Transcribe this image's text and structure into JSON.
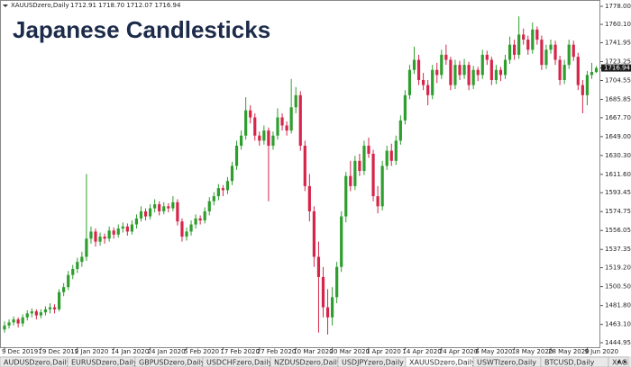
{
  "chart_data": {
    "type": "candlestick",
    "title": "Japanese Candlesticks",
    "symbol": "XAUUSDzero,Daily",
    "quote": "1712.91 1718.70 1712.07 1716.94",
    "last_price": 1716.94,
    "bull_color": "#2e9e2e",
    "bear_color": "#d6254a",
    "ylim": [
      1444.95,
      1778
    ],
    "yticks": [
      {
        "value": 1778,
        "label": "1778.00"
      },
      {
        "value": 1760.1,
        "label": "1760.10"
      },
      1741.95,
      1723.25,
      1704.55,
      1685.85,
      {
        "value": 1667.7,
        "label": "1667.70"
      },
      {
        "value": 1649,
        "label": "1649.00"
      },
      {
        "value": 1630.3,
        "label": "1630.30"
      },
      {
        "value": 1611.6,
        "label": "1611.60"
      },
      1593.45,
      1574.75,
      1556.05,
      1537.35,
      {
        "value": 1519.2,
        "label": "1519.20"
      },
      {
        "value": 1500.5,
        "label": "1500.50"
      },
      {
        "value": 1481.8,
        "label": "1481.80"
      },
      {
        "value": 1463.1,
        "label": "1463.10"
      },
      1444.95
    ],
    "categories": [
      "9 Dec 2019",
      null,
      null,
      null,
      null,
      null,
      null,
      null,
      "19 Dec 2019",
      null,
      null,
      null,
      null,
      null,
      null,
      null,
      "2 Jan 2020",
      null,
      null,
      null,
      null,
      null,
      null,
      null,
      "14 Jan 2020",
      null,
      null,
      null,
      null,
      null,
      null,
      null,
      "24 Jan 2020",
      null,
      null,
      null,
      null,
      null,
      null,
      null,
      "5 Feb 2020",
      null,
      null,
      null,
      null,
      null,
      null,
      null,
      "17 Feb 2020",
      null,
      null,
      null,
      null,
      null,
      null,
      null,
      "27 Feb 2020",
      null,
      null,
      null,
      null,
      null,
      null,
      null,
      "10 Mar 2020",
      null,
      null,
      null,
      null,
      null,
      null,
      null,
      "20 Mar 2020",
      null,
      null,
      null,
      null,
      null,
      null,
      null,
      "1 Apr 2020",
      null,
      null,
      null,
      null,
      null,
      null,
      null,
      "14 Apr 2020",
      null,
      null,
      null,
      null,
      null,
      null,
      null,
      "24 Apr 2020",
      null,
      null,
      null,
      null,
      null,
      null,
      null,
      "6 May 2020",
      null,
      null,
      null,
      null,
      null,
      null,
      null,
      "18 May 2020",
      null,
      null,
      null,
      null,
      null,
      null,
      null,
      "28 May 2020",
      null,
      null,
      null,
      null,
      null,
      null,
      null,
      "9 Jun 2020",
      null,
      null
    ],
    "ohlc": [
      [
        1458,
        1466,
        1455,
        1462
      ],
      [
        1462,
        1468,
        1459,
        1465
      ],
      [
        1465,
        1471,
        1462,
        1468
      ],
      [
        1468,
        1470,
        1460,
        1464
      ],
      [
        1464,
        1473,
        1461,
        1470
      ],
      [
        1470,
        1477,
        1467,
        1474
      ],
      [
        1474,
        1479,
        1470,
        1476
      ],
      [
        1476,
        1478,
        1468,
        1472
      ],
      [
        1472,
        1478,
        1469,
        1475
      ],
      [
        1475,
        1481,
        1472,
        1478
      ],
      [
        1478,
        1484,
        1474,
        1480
      ],
      [
        1480,
        1483,
        1474,
        1478
      ],
      [
        1478,
        1498,
        1476,
        1495
      ],
      [
        1495,
        1504,
        1491,
        1500
      ],
      [
        1500,
        1516,
        1497,
        1512
      ],
      [
        1512,
        1522,
        1508,
        1518
      ],
      [
        1518,
        1529,
        1514,
        1525
      ],
      [
        1525,
        1535,
        1520,
        1530
      ],
      [
        1530,
        1612,
        1526,
        1548
      ],
      [
        1548,
        1560,
        1543,
        1555
      ],
      [
        1555,
        1558,
        1540,
        1545
      ],
      [
        1545,
        1554,
        1541,
        1550
      ],
      [
        1550,
        1553,
        1543,
        1548
      ],
      [
        1548,
        1560,
        1545,
        1556
      ],
      [
        1556,
        1559,
        1548,
        1552
      ],
      [
        1552,
        1562,
        1549,
        1558
      ],
      [
        1558,
        1564,
        1554,
        1560
      ],
      [
        1560,
        1563,
        1551,
        1555
      ],
      [
        1555,
        1566,
        1552,
        1562
      ],
      [
        1562,
        1572,
        1558,
        1568
      ],
      [
        1568,
        1580,
        1565,
        1575
      ],
      [
        1575,
        1578,
        1566,
        1570
      ],
      [
        1570,
        1582,
        1567,
        1578
      ],
      [
        1578,
        1587,
        1574,
        1582
      ],
      [
        1582,
        1585,
        1571,
        1575
      ],
      [
        1575,
        1584,
        1572,
        1580
      ],
      [
        1580,
        1583,
        1574,
        1578
      ],
      [
        1578,
        1590,
        1575,
        1584
      ],
      [
        1584,
        1587,
        1561,
        1565
      ],
      [
        1565,
        1568,
        1545,
        1550
      ],
      [
        1550,
        1559,
        1546,
        1555
      ],
      [
        1555,
        1566,
        1551,
        1562
      ],
      [
        1562,
        1572,
        1558,
        1568
      ],
      [
        1568,
        1571,
        1562,
        1566
      ],
      [
        1566,
        1579,
        1563,
        1575
      ],
      [
        1575,
        1589,
        1571,
        1585
      ],
      [
        1585,
        1594,
        1581,
        1590
      ],
      [
        1590,
        1602,
        1586,
        1598
      ],
      [
        1598,
        1601,
        1590,
        1596
      ],
      [
        1596,
        1609,
        1592,
        1605
      ],
      [
        1605,
        1624,
        1601,
        1620
      ],
      [
        1620,
        1645,
        1616,
        1640
      ],
      [
        1640,
        1655,
        1636,
        1650
      ],
      [
        1650,
        1688,
        1646,
        1675
      ],
      [
        1675,
        1680,
        1662,
        1668
      ],
      [
        1668,
        1672,
        1645,
        1650
      ],
      [
        1650,
        1654,
        1640,
        1645
      ],
      [
        1645,
        1660,
        1641,
        1655
      ],
      [
        1655,
        1658,
        1585,
        1640
      ],
      [
        1640,
        1654,
        1636,
        1650
      ],
      [
        1650,
        1677,
        1646,
        1668
      ],
      [
        1668,
        1672,
        1655,
        1660
      ],
      [
        1660,
        1664,
        1650,
        1655
      ],
      [
        1655,
        1706,
        1652,
        1678
      ],
      [
        1678,
        1698,
        1672,
        1690
      ],
      [
        1690,
        1694,
        1635,
        1640
      ],
      [
        1640,
        1645,
        1595,
        1600
      ],
      [
        1600,
        1612,
        1565,
        1575
      ],
      [
        1575,
        1580,
        1520,
        1530
      ],
      [
        1530,
        1545,
        1455,
        1510
      ],
      [
        1510,
        1520,
        1470,
        1480
      ],
      [
        1480,
        1498,
        1453,
        1470
      ],
      [
        1470,
        1500,
        1462,
        1490
      ],
      [
        1490,
        1525,
        1484,
        1520
      ],
      [
        1520,
        1575,
        1515,
        1570
      ],
      [
        1570,
        1614,
        1564,
        1610
      ],
      [
        1610,
        1625,
        1595,
        1600
      ],
      [
        1600,
        1630,
        1596,
        1625
      ],
      [
        1625,
        1632,
        1610,
        1615
      ],
      [
        1615,
        1645,
        1611,
        1640
      ],
      [
        1640,
        1648,
        1628,
        1632
      ],
      [
        1632,
        1636,
        1585,
        1590
      ],
      [
        1590,
        1600,
        1573,
        1580
      ],
      [
        1580,
        1625,
        1576,
        1620
      ],
      [
        1620,
        1640,
        1616,
        1635
      ],
      [
        1635,
        1642,
        1620,
        1625
      ],
      [
        1625,
        1650,
        1621,
        1645
      ],
      [
        1645,
        1670,
        1641,
        1665
      ],
      [
        1665,
        1695,
        1661,
        1690
      ],
      [
        1690,
        1720,
        1686,
        1715
      ],
      [
        1715,
        1738,
        1711,
        1725
      ],
      [
        1725,
        1730,
        1700,
        1705
      ],
      [
        1705,
        1712,
        1695,
        1700
      ],
      [
        1700,
        1705,
        1680,
        1690
      ],
      [
        1690,
        1720,
        1686,
        1715
      ],
      [
        1715,
        1722,
        1702,
        1710
      ],
      [
        1710,
        1735,
        1706,
        1730
      ],
      [
        1730,
        1740,
        1720,
        1725
      ],
      [
        1725,
        1728,
        1695,
        1700
      ],
      [
        1700,
        1725,
        1696,
        1720
      ],
      [
        1720,
        1724,
        1705,
        1710
      ],
      [
        1710,
        1726,
        1706,
        1720
      ],
      [
        1720,
        1723,
        1695,
        1700
      ],
      [
        1700,
        1719,
        1696,
        1715
      ],
      [
        1715,
        1718,
        1704,
        1710
      ],
      [
        1710,
        1735,
        1706,
        1730
      ],
      [
        1730,
        1734,
        1720,
        1725
      ],
      [
        1725,
        1728,
        1700,
        1705
      ],
      [
        1705,
        1720,
        1701,
        1715
      ],
      [
        1715,
        1718,
        1704,
        1710
      ],
      [
        1710,
        1730,
        1706,
        1725
      ],
      [
        1725,
        1748,
        1721,
        1740
      ],
      [
        1740,
        1745,
        1725,
        1730
      ],
      [
        1730,
        1768,
        1726,
        1750
      ],
      [
        1750,
        1756,
        1740,
        1745
      ],
      [
        1745,
        1749,
        1730,
        1735
      ],
      [
        1735,
        1762,
        1731,
        1755
      ],
      [
        1755,
        1758,
        1740,
        1745
      ],
      [
        1745,
        1749,
        1715,
        1720
      ],
      [
        1720,
        1740,
        1716,
        1735
      ],
      [
        1735,
        1745,
        1731,
        1740
      ],
      [
        1740,
        1744,
        1720,
        1725
      ],
      [
        1725,
        1729,
        1700,
        1705
      ],
      [
        1705,
        1725,
        1701,
        1720
      ],
      [
        1720,
        1745,
        1716,
        1740
      ],
      [
        1740,
        1744,
        1724,
        1728
      ],
      [
        1728,
        1732,
        1695,
        1700
      ],
      [
        1700,
        1705,
        1672,
        1690
      ],
      [
        1690,
        1714,
        1680,
        1710
      ],
      [
        1710,
        1722,
        1706,
        1712.91
      ],
      [
        1712.91,
        1718.7,
        1712.07,
        1716.94
      ]
    ]
  },
  "tabs": [
    "AUDUSDzero,Daily",
    "EURUSDzero,Daily",
    "GBPUSDzero,Daily",
    "USDCHFzero,Daily",
    "NZDUSDzero,Daily",
    "USDJPYzero,Daily",
    "XAUUSDzero,Daily",
    "USWTIzero,Daily",
    "BTCUSD,Daily",
    "XAG"
  ],
  "active_tab": 6
}
